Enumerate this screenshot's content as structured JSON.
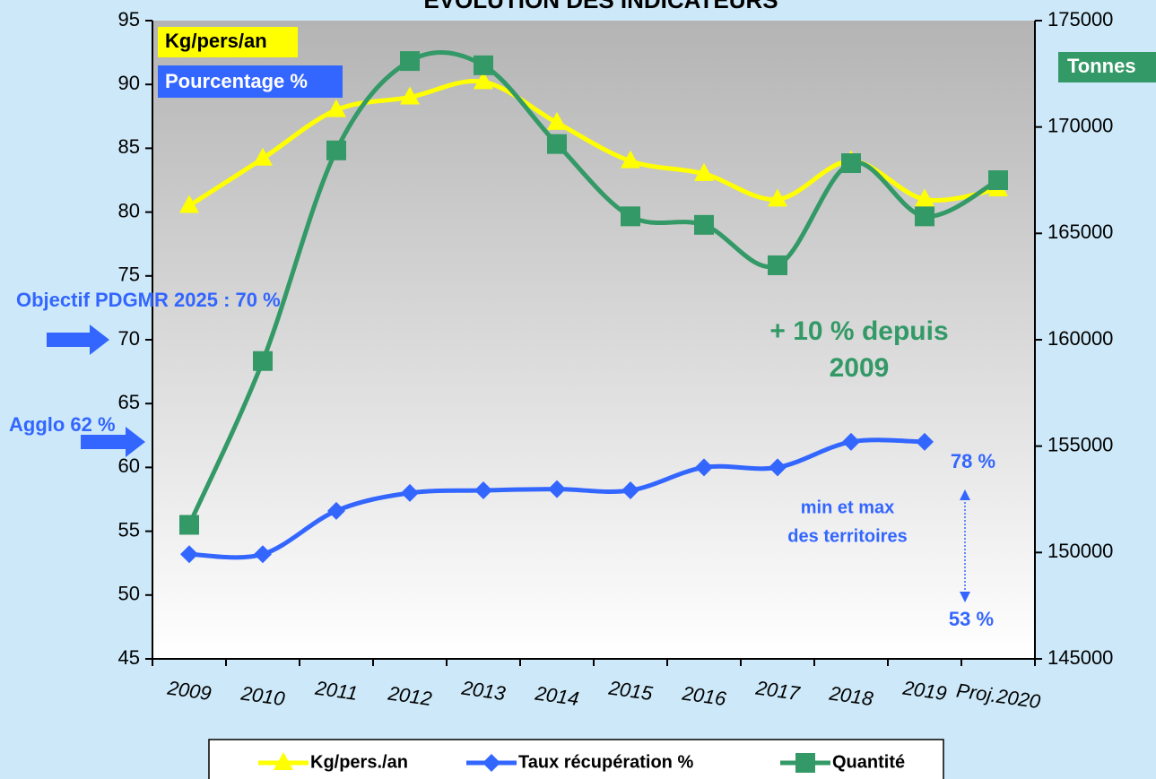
{
  "chart_data": {
    "type": "line",
    "title": "EVOLUTION DES INDICATEURS",
    "categories": [
      "2009",
      "2010",
      "2011",
      "2012",
      "2013",
      "2014",
      "2015",
      "2016",
      "2017",
      "2018",
      "2019",
      "Proj.2020"
    ],
    "series": [
      {
        "name": "Kg/pers./an",
        "color": "#ffff00",
        "marker": "triangle",
        "values": [
          80.5,
          84.2,
          88,
          89,
          90.2,
          87,
          84,
          83,
          81,
          84,
          81,
          81.8
        ]
      },
      {
        "name": "Taux récupération %",
        "color": "#3366ff",
        "marker": "diamond",
        "values": [
          53.2,
          53.2,
          56.6,
          58,
          58.2,
          58.3,
          58.2,
          60,
          60,
          62,
          62,
          null
        ]
      },
      {
        "name": "Quantité",
        "color": "#339966",
        "marker": "square",
        "axis": "y2",
        "values": [
          151300,
          159000,
          168900,
          173100,
          172900,
          169200,
          165800,
          165400,
          163500,
          168300,
          165800,
          167500
        ]
      }
    ],
    "ylim": [
      45,
      95
    ],
    "yticks": [
      45,
      50,
      55,
      60,
      65,
      70,
      75,
      80,
      85,
      90,
      95
    ],
    "y2lim": [
      145000,
      175000
    ],
    "y2ticks": [
      145000,
      150000,
      155000,
      160000,
      165000,
      170000,
      175000
    ],
    "annotations": {
      "y_label": "Kg/pers/an",
      "pct_label": "Pourcentage %",
      "y2_label": "Tonnes",
      "objectif": "Objectif PDGMR 2025 : 70 %",
      "agglo": "Agglo 62 %",
      "growth_line1": "+ 10 % depuis",
      "growth_line2": "2009",
      "max": "78 %",
      "range_line1": "min et max",
      "range_line2": "des territoires",
      "min": "53 %"
    },
    "legend": "bottom"
  }
}
